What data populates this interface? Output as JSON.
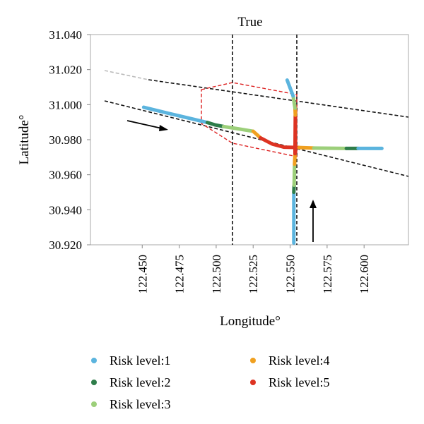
{
  "chart_data": {
    "type": "scatter",
    "title": "True",
    "xlabel": "Longitude°",
    "ylabel": "Latitude°",
    "xlim": [
      122.415,
      122.63
    ],
    "ylim": [
      30.92,
      31.04
    ],
    "x_ticks": [
      "122.450",
      "122.475",
      "122.500",
      "122.525",
      "122.550",
      "122.575",
      "122.600"
    ],
    "y_ticks": [
      "30.920",
      "30.940",
      "30.960",
      "30.980",
      "31.000",
      "31.020",
      "31.040"
    ],
    "legend_position": "bottom",
    "series": [
      {
        "name": "Risk level:1",
        "color": "#5bb4de"
      },
      {
        "name": "Risk level:2",
        "color": "#2e7d4a"
      },
      {
        "name": "Risk level:3",
        "color": "#9ccf7a"
      },
      {
        "name": "Risk level:4",
        "color": "#f0a020"
      },
      {
        "name": "Risk level:5",
        "color": "#dd3322"
      }
    ],
    "tracks": [
      {
        "segments": [
          {
            "level": 1,
            "x": [
              122.451,
              122.468,
              122.483,
              122.494
            ]
          },
          {
            "level": 2,
            "x": [
              122.494,
              122.499,
              122.505
            ]
          },
          {
            "level": 3,
            "x": [
              122.505,
              122.515,
              122.525
            ]
          },
          {
            "level": 4,
            "x": [
              122.525,
              122.53
            ]
          },
          {
            "level": 5,
            "x": [
              122.53,
              122.538,
              122.546,
              122.556
            ]
          },
          {
            "level": 4,
            "x": [
              122.556,
              122.566
            ]
          },
          {
            "level": 3,
            "x": [
              122.566,
              122.588
            ]
          },
          {
            "level": 2,
            "x": [
              122.588,
              122.596
            ]
          },
          {
            "level": 1,
            "x": [
              122.596,
              122.612
            ]
          }
        ],
        "y": {
          "122.451": 30.9985,
          "122.468": 30.995,
          "122.483": 30.992,
          "122.494": 30.9898,
          "122.499": 30.9885,
          "122.505": 30.9875,
          "122.515": 30.9862,
          "122.525": 30.9848,
          "122.530": 30.981,
          "122.538": 30.9775,
          "122.546": 30.9757,
          "122.556": 30.9755,
          "122.566": 30.9752,
          "122.588": 30.975,
          "122.596": 30.975,
          "122.612": 30.975
        }
      },
      {
        "vertical": [
          {
            "level": 1,
            "y": [
              30.921,
              30.95
            ]
          },
          {
            "level": 2,
            "y": [
              30.95,
              30.954
            ]
          },
          {
            "level": 3,
            "y": [
              30.954,
              30.966
            ]
          },
          {
            "level": 4,
            "y": [
              30.966,
              30.972
            ]
          },
          {
            "level": 5,
            "y": [
              30.972,
              30.994
            ]
          },
          {
            "level": 4,
            "y": [
              30.994,
              30.998
            ]
          },
          {
            "level": 3,
            "y": [
              30.998,
              31.005
            ]
          },
          {
            "level": 1,
            "y": [
              31.005,
              31.014
            ]
          }
        ],
        "x": {
          "30.921": 122.5525,
          "30.950": 122.5525,
          "30.954": 122.5527,
          "30.966": 122.553,
          "30.972": 122.5533,
          "30.994": 122.5535,
          "30.998": 122.5533,
          "31.005": 122.552,
          "31.014": 122.548
        }
      }
    ]
  }
}
